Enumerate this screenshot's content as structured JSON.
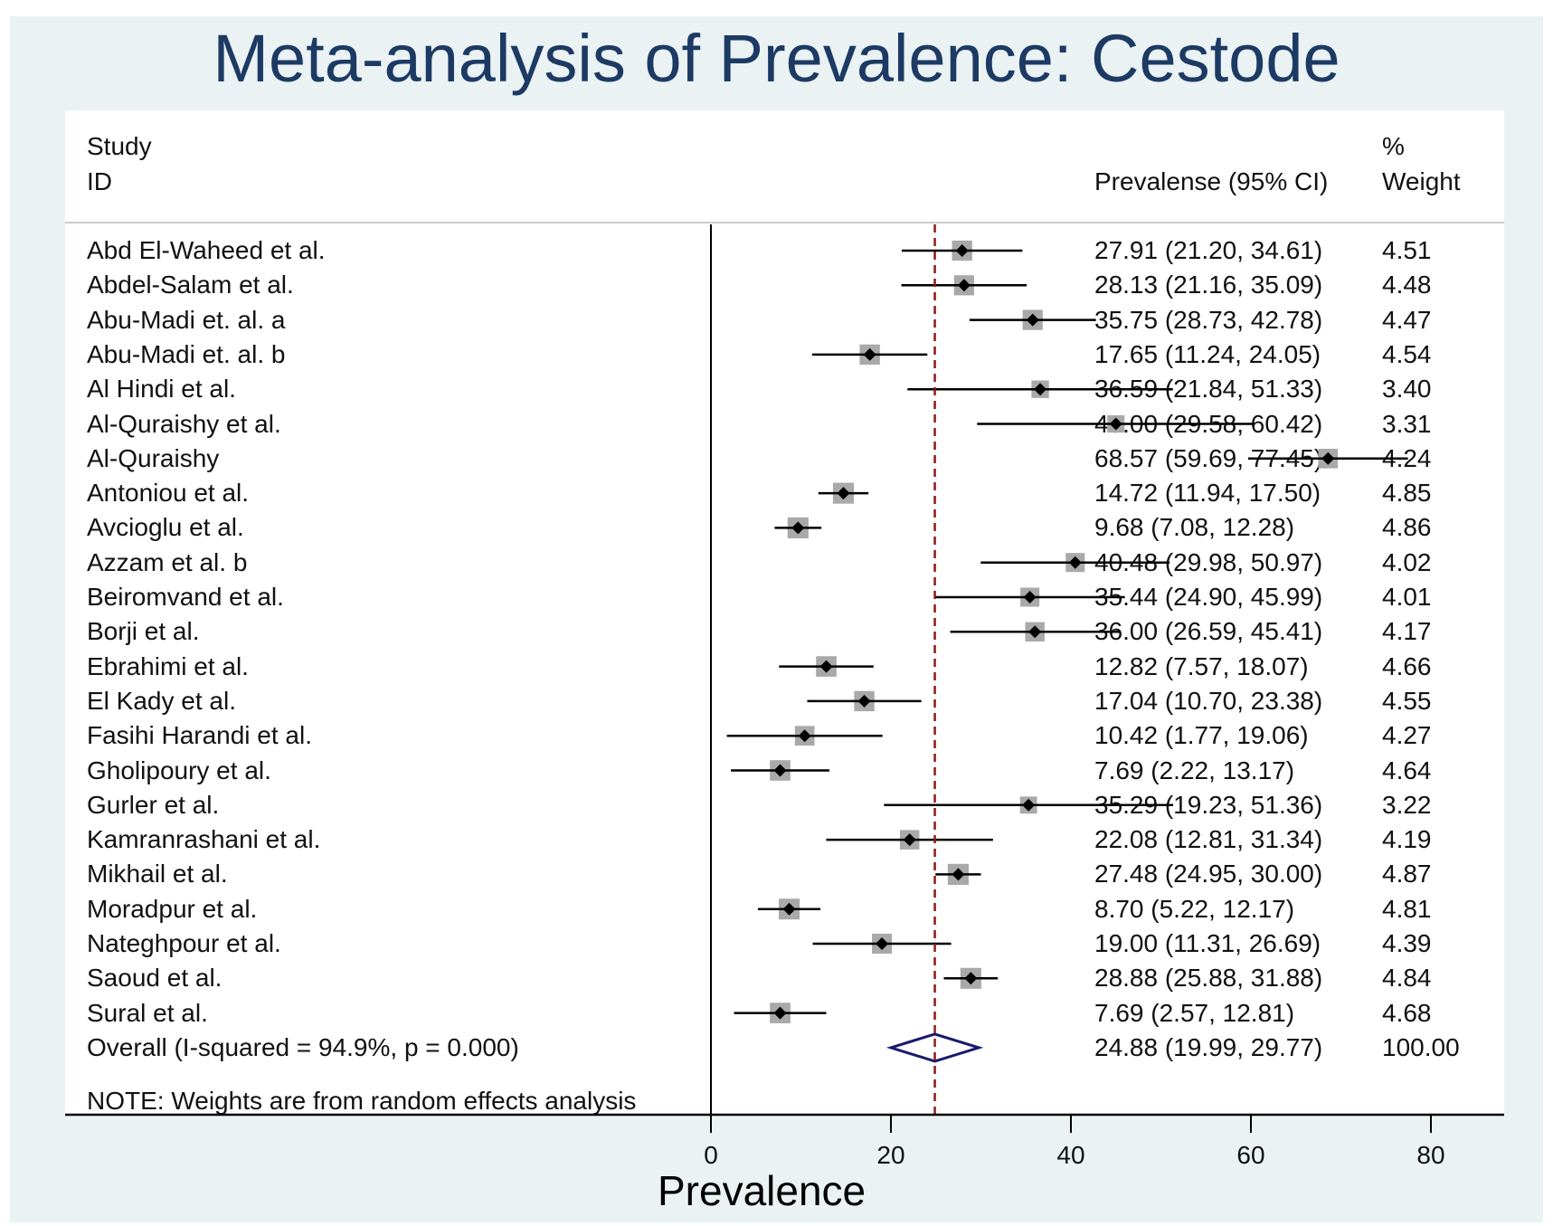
{
  "chart_data": {
    "type": "forest",
    "title": "Meta-analysis of Prevalence: Cestode",
    "header": {
      "study_line1": "Study",
      "study_line2": "ID",
      "effect_label": "Prevalense (95% CI)",
      "weight_line1": "%",
      "weight_line2": "Weight"
    },
    "studies": [
      {
        "name": "Abd El-Waheed et al.",
        "est": 27.91,
        "lo": 21.2,
        "hi": 34.61,
        "weight": 4.51,
        "ci_text": "27.91 (21.20, 34.61)",
        "weight_text": "4.51"
      },
      {
        "name": "Abdel-Salam et al.",
        "est": 28.13,
        "lo": 21.16,
        "hi": 35.09,
        "weight": 4.48,
        "ci_text": "28.13 (21.16, 35.09)",
        "weight_text": "4.48"
      },
      {
        "name": "Abu-Madi et. al. a",
        "est": 35.75,
        "lo": 28.73,
        "hi": 42.78,
        "weight": 4.47,
        "ci_text": "35.75 (28.73, 42.78)",
        "weight_text": "4.47"
      },
      {
        "name": "Abu-Madi et. al. b",
        "est": 17.65,
        "lo": 11.24,
        "hi": 24.05,
        "weight": 4.54,
        "ci_text": "17.65 (11.24, 24.05)",
        "weight_text": "4.54"
      },
      {
        "name": "Al Hindi et al.",
        "est": 36.59,
        "lo": 21.84,
        "hi": 51.33,
        "weight": 3.4,
        "ci_text": "36.59 (21.84, 51.33)",
        "weight_text": "3.40"
      },
      {
        "name": "Al-Quraishy et al.",
        "est": 45.0,
        "lo": 29.58,
        "hi": 60.42,
        "weight": 3.31,
        "ci_text": "45.00 (29.58, 60.42)",
        "weight_text": "3.31"
      },
      {
        "name": "Al-Quraishy",
        "est": 68.57,
        "lo": 59.69,
        "hi": 77.45,
        "weight": 4.24,
        "ci_text": "68.57 (59.69, 77.45)",
        "weight_text": "4.24"
      },
      {
        "name": "Antoniou et al.",
        "est": 14.72,
        "lo": 11.94,
        "hi": 17.5,
        "weight": 4.85,
        "ci_text": "14.72 (11.94, 17.50)",
        "weight_text": "4.85"
      },
      {
        "name": "Avcioglu et al.",
        "est": 9.68,
        "lo": 7.08,
        "hi": 12.28,
        "weight": 4.86,
        "ci_text": "9.68 (7.08, 12.28)",
        "weight_text": "4.86"
      },
      {
        "name": "Azzam et al. b",
        "est": 40.48,
        "lo": 29.98,
        "hi": 50.97,
        "weight": 4.02,
        "ci_text": "40.48 (29.98, 50.97)",
        "weight_text": "4.02"
      },
      {
        "name": "Beiromvand et al.",
        "est": 35.44,
        "lo": 24.9,
        "hi": 45.99,
        "weight": 4.01,
        "ci_text": "35.44 (24.90, 45.99)",
        "weight_text": "4.01"
      },
      {
        "name": "Borji et al.",
        "est": 36.0,
        "lo": 26.59,
        "hi": 45.41,
        "weight": 4.17,
        "ci_text": "36.00 (26.59, 45.41)",
        "weight_text": "4.17"
      },
      {
        "name": "Ebrahimi et al.",
        "est": 12.82,
        "lo": 7.57,
        "hi": 18.07,
        "weight": 4.66,
        "ci_text": "12.82 (7.57, 18.07)",
        "weight_text": "4.66"
      },
      {
        "name": "El Kady et al.",
        "est": 17.04,
        "lo": 10.7,
        "hi": 23.38,
        "weight": 4.55,
        "ci_text": "17.04 (10.70, 23.38)",
        "weight_text": "4.55"
      },
      {
        "name": "Fasihi Harandi et al.",
        "est": 10.42,
        "lo": 1.77,
        "hi": 19.06,
        "weight": 4.27,
        "ci_text": "10.42 (1.77, 19.06)",
        "weight_text": "4.27"
      },
      {
        "name": "Gholipoury et al.",
        "est": 7.69,
        "lo": 2.22,
        "hi": 13.17,
        "weight": 4.64,
        "ci_text": "7.69 (2.22, 13.17)",
        "weight_text": "4.64"
      },
      {
        "name": "Gurler et al.",
        "est": 35.29,
        "lo": 19.23,
        "hi": 51.36,
        "weight": 3.22,
        "ci_text": "35.29 (19.23, 51.36)",
        "weight_text": "3.22"
      },
      {
        "name": "Kamranrashani et al.",
        "est": 22.08,
        "lo": 12.81,
        "hi": 31.34,
        "weight": 4.19,
        "ci_text": "22.08 (12.81, 31.34)",
        "weight_text": "4.19"
      },
      {
        "name": "Mikhail et al.",
        "est": 27.48,
        "lo": 24.95,
        "hi": 30.0,
        "weight": 4.87,
        "ci_text": "27.48 (24.95, 30.00)",
        "weight_text": "4.87"
      },
      {
        "name": "Moradpur et al.",
        "est": 8.7,
        "lo": 5.22,
        "hi": 12.17,
        "weight": 4.81,
        "ci_text": "8.70 (5.22, 12.17)",
        "weight_text": "4.81"
      },
      {
        "name": "Nateghpour et al.",
        "est": 19.0,
        "lo": 11.31,
        "hi": 26.69,
        "weight": 4.39,
        "ci_text": "19.00 (11.31, 26.69)",
        "weight_text": "4.39"
      },
      {
        "name": "Saoud et al.",
        "est": 28.88,
        "lo": 25.88,
        "hi": 31.88,
        "weight": 4.84,
        "ci_text": "28.88 (25.88, 31.88)",
        "weight_text": "4.84"
      },
      {
        "name": "Sural et al.",
        "est": 7.69,
        "lo": 2.57,
        "hi": 12.81,
        "weight": 4.68,
        "ci_text": "7.69 (2.57, 12.81)",
        "weight_text": "4.68"
      }
    ],
    "overall": {
      "label": "Overall  (I-squared = 94.9%, p = 0.000)",
      "est": 24.88,
      "lo": 19.99,
      "hi": 29.77,
      "weight": 100.0,
      "ci_text": "24.88 (19.99, 29.77)",
      "weight_text": "100.00"
    },
    "note": "NOTE: Weights are from random effects analysis",
    "xlabel": "Prevalence",
    "xticks": [
      0,
      20,
      40,
      60,
      80
    ],
    "xlim": [
      0,
      80
    ],
    "colors": {
      "title": "#1c3a63",
      "overall_diamond": "#1a1a6e",
      "reference_line": "#8b1a1a",
      "weight_box": "#a9a9a9",
      "background": "#eaf2f3"
    }
  }
}
